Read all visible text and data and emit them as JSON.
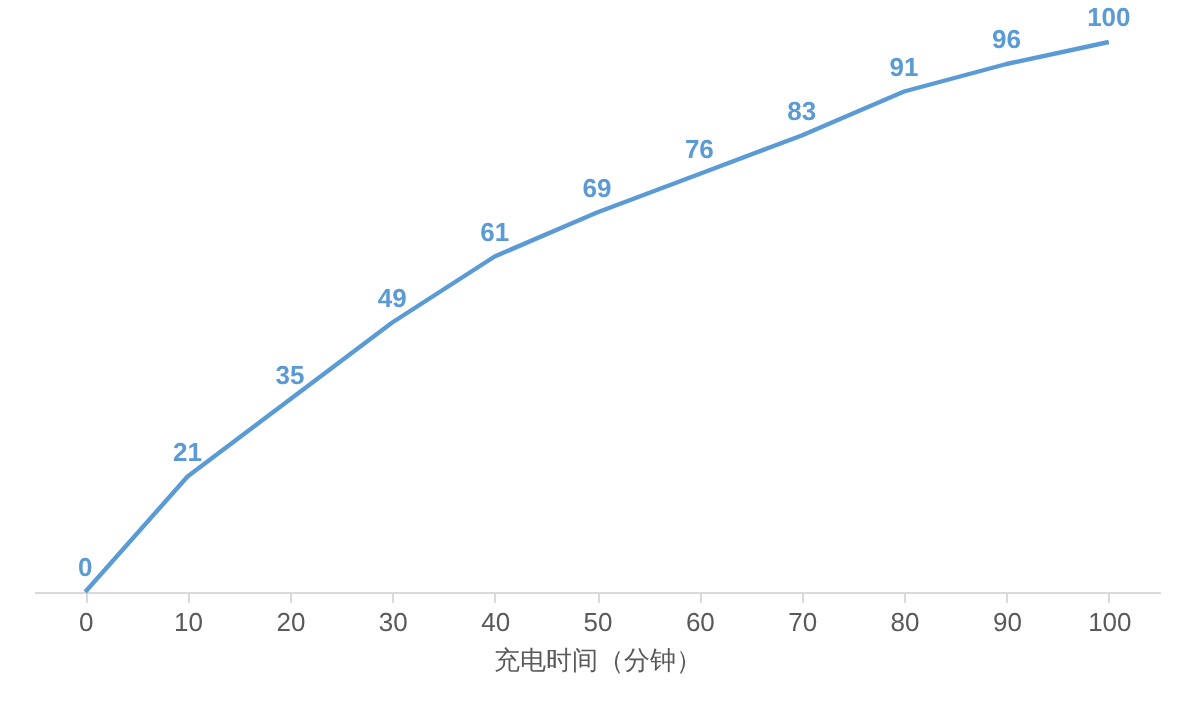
{
  "chart_data": {
    "type": "line",
    "xlabel": "充电时间（分钟）",
    "categories": [
      "0",
      "10",
      "20",
      "30",
      "40",
      "50",
      "60",
      "70",
      "80",
      "90",
      "100"
    ],
    "series": [
      {
        "color": "#5b9bd5",
        "values": [
          0,
          21,
          35,
          49,
          61,
          69,
          76,
          83,
          91,
          96,
          100
        ]
      }
    ],
    "data_labels": true,
    "grid": false,
    "marker": "none",
    "line_style": "solid"
  }
}
